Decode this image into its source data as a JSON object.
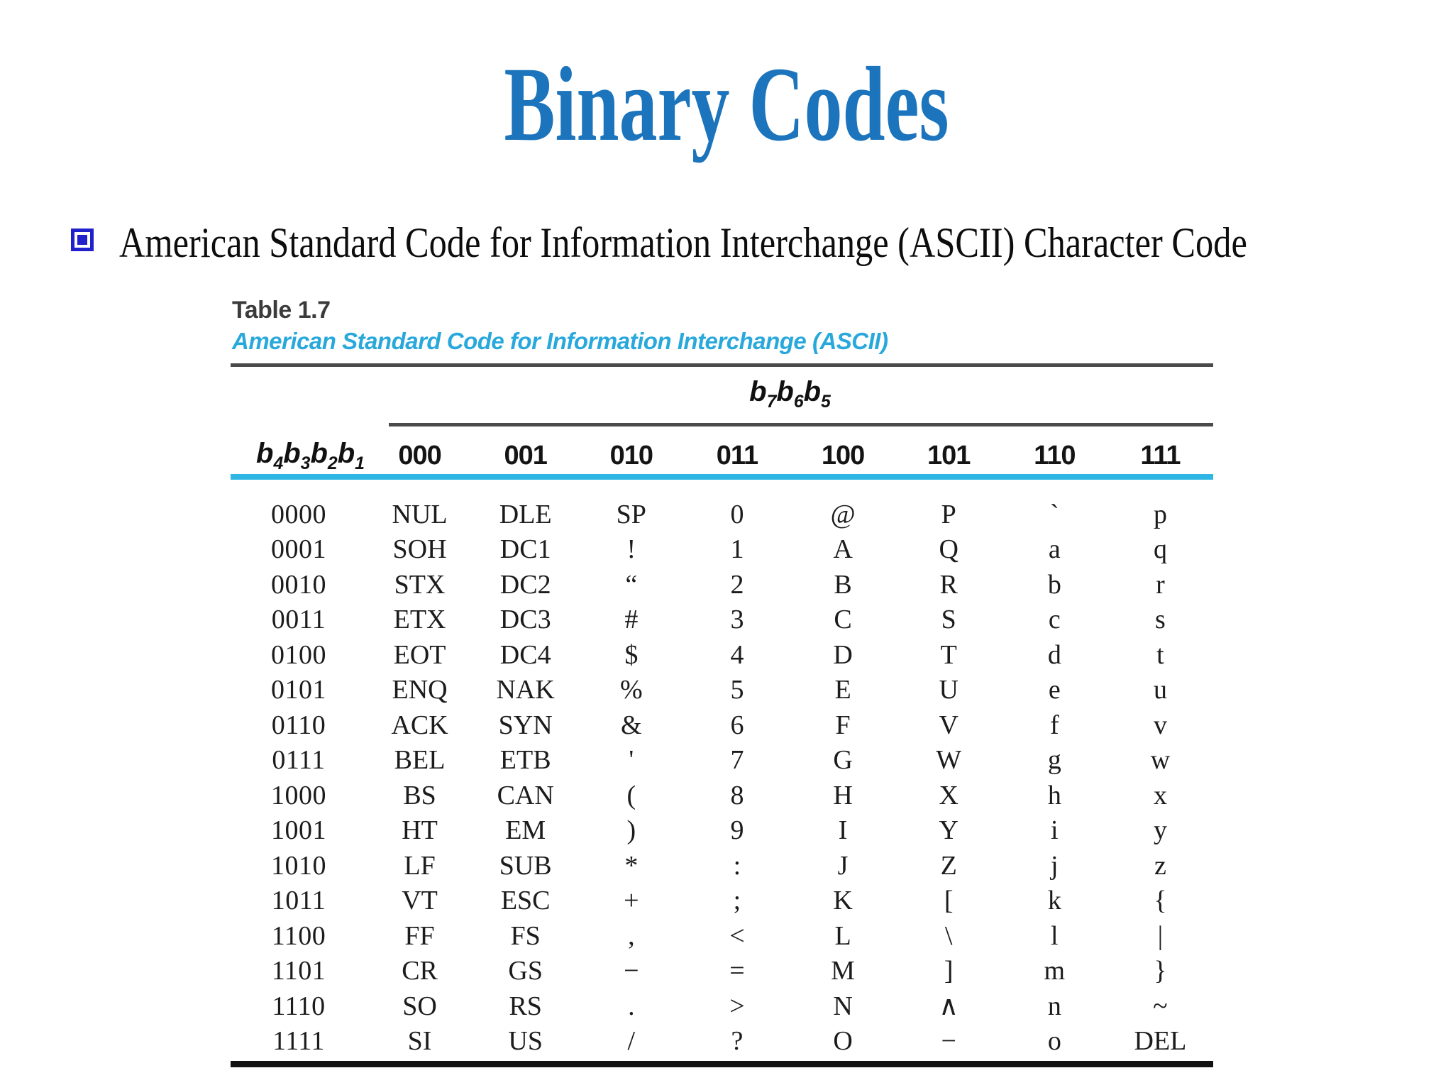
{
  "page": {
    "title": "Binary Codes",
    "bullet_text": "American Standard Code for Information Interchange (ASCII) Character Code"
  },
  "table": {
    "caption": "Table 1.7",
    "subtitle": "American Standard Code for Information Interchange (ASCII)",
    "span_header": "b7b6b5",
    "row_header": "b4b3b2b1",
    "column_headers": [
      "000",
      "001",
      "010",
      "011",
      "100",
      "101",
      "110",
      "111"
    ],
    "rows": [
      {
        "bits": "0000",
        "cells": [
          "NUL",
          "DLE",
          "SP",
          "0",
          "@",
          "P",
          "`",
          "p"
        ]
      },
      {
        "bits": "0001",
        "cells": [
          "SOH",
          "DC1",
          "!",
          "1",
          "A",
          "Q",
          "a",
          "q"
        ]
      },
      {
        "bits": "0010",
        "cells": [
          "STX",
          "DC2",
          "“",
          "2",
          "B",
          "R",
          "b",
          "r"
        ]
      },
      {
        "bits": "0011",
        "cells": [
          "ETX",
          "DC3",
          "#",
          "3",
          "C",
          "S",
          "c",
          "s"
        ]
      },
      {
        "bits": "0100",
        "cells": [
          "EOT",
          "DC4",
          "$",
          "4",
          "D",
          "T",
          "d",
          "t"
        ]
      },
      {
        "bits": "0101",
        "cells": [
          "ENQ",
          "NAK",
          "%",
          "5",
          "E",
          "U",
          "e",
          "u"
        ]
      },
      {
        "bits": "0110",
        "cells": [
          "ACK",
          "SYN",
          "&",
          "6",
          "F",
          "V",
          "f",
          "v"
        ]
      },
      {
        "bits": "0111",
        "cells": [
          "BEL",
          "ETB",
          "'",
          "7",
          "G",
          "W",
          "g",
          "w"
        ]
      },
      {
        "bits": "1000",
        "cells": [
          "BS",
          "CAN",
          "(",
          "8",
          "H",
          "X",
          "h",
          "x"
        ]
      },
      {
        "bits": "1001",
        "cells": [
          "HT",
          "EM",
          ")",
          "9",
          "I",
          "Y",
          "i",
          "y"
        ]
      },
      {
        "bits": "1010",
        "cells": [
          "LF",
          "SUB",
          "*",
          ":",
          "J",
          "Z",
          "j",
          "z"
        ]
      },
      {
        "bits": "1011",
        "cells": [
          "VT",
          "ESC",
          "+",
          ";",
          "K",
          "[",
          "k",
          "{"
        ]
      },
      {
        "bits": "1100",
        "cells": [
          "FF",
          "FS",
          ",",
          "<",
          "L",
          "\\",
          "l",
          "|"
        ]
      },
      {
        "bits": "1101",
        "cells": [
          "CR",
          "GS",
          "−",
          "=",
          "M",
          "]",
          "m",
          "}"
        ]
      },
      {
        "bits": "1110",
        "cells": [
          "SO",
          "RS",
          ".",
          ">",
          "N",
          "∧",
          "n",
          "~"
        ]
      },
      {
        "bits": "1111",
        "cells": [
          "SI",
          "US",
          "/",
          "?",
          "O",
          "−",
          "o",
          "DEL"
        ]
      }
    ]
  },
  "colors": {
    "title_blue": "#1b74bc",
    "bullet_blue": "#2121cc",
    "cyan_text": "#29a8dc",
    "cyan_rule": "#2fb6e4",
    "rule_dark": "#4a4a4a",
    "rule_black": "#121212"
  }
}
